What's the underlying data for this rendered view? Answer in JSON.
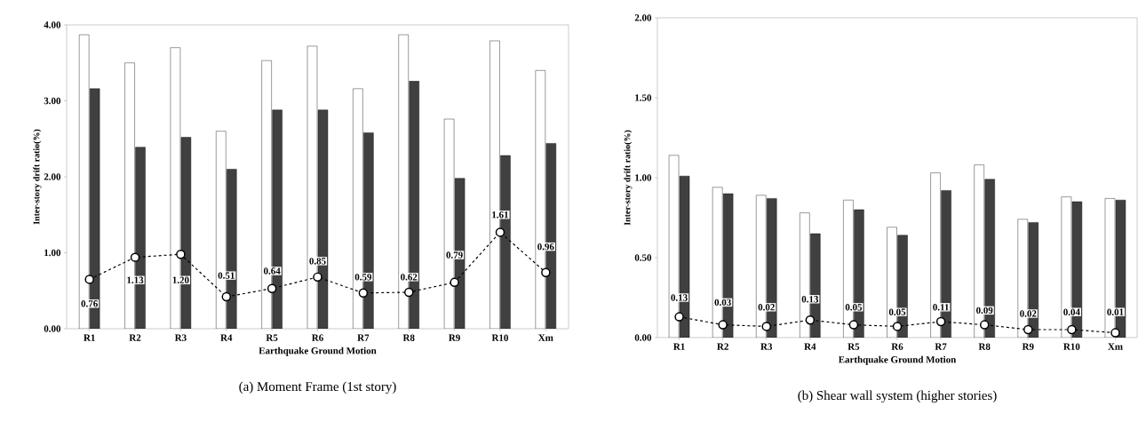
{
  "chart_data": [
    {
      "type": "bar",
      "title": "(a) Moment Frame (1st story)",
      "xlabel": "Earthquake Ground Motion",
      "ylabel": "Inter-story drift ratio(%)",
      "categories": [
        "R1",
        "R2",
        "R3",
        "R4",
        "R5",
        "R6",
        "R7",
        "R8",
        "R9",
        "R10",
        "Xm"
      ],
      "ylim": [
        0,
        4
      ],
      "yticks": [
        {
          "value": 0,
          "label": "0.00"
        },
        {
          "value": 1,
          "label": "1.00"
        },
        {
          "value": 2,
          "label": "2.00"
        },
        {
          "value": 3,
          "label": "3.00"
        },
        {
          "value": 4,
          "label": "4.00"
        }
      ],
      "series": [
        {
          "color": "#ffffff",
          "values": [
            3.87,
            3.5,
            3.7,
            2.6,
            3.53,
            3.72,
            3.16,
            3.87,
            2.76,
            3.79,
            3.4
          ]
        },
        {
          "color": "#404040",
          "values": [
            3.16,
            2.39,
            2.52,
            2.1,
            2.88,
            2.88,
            2.58,
            3.26,
            1.98,
            2.28,
            2.44
          ]
        },
        {
          "type": "line",
          "color": "#000000",
          "line_style": "dashed",
          "marker": "circle",
          "values": [
            0.65,
            0.94,
            0.98,
            0.42,
            0.53,
            0.68,
            0.47,
            0.48,
            0.61,
            1.27,
            0.74
          ]
        }
      ],
      "annotations": [
        {
          "text": "0.76",
          "x": "R1",
          "y": 0.33
        },
        {
          "text": "1.13",
          "x": "R2",
          "y": 0.64
        },
        {
          "text": "1.20",
          "x": "R3",
          "y": 0.64
        },
        {
          "text": "0.51",
          "x": "R4",
          "y": 0.7
        },
        {
          "text": "0.64",
          "x": "R5",
          "y": 0.76
        },
        {
          "text": "0.85",
          "x": "R6",
          "y": 0.89
        },
        {
          "text": "0.59",
          "x": "R7",
          "y": 0.68
        },
        {
          "text": "0.62",
          "x": "R8",
          "y": 0.68
        },
        {
          "text": "0.79",
          "x": "R9",
          "y": 0.97
        },
        {
          "text": "1.61",
          "x": "R10",
          "y": 1.5
        },
        {
          "text": "0.96",
          "x": "Xm",
          "y": 1.08
        }
      ]
    },
    {
      "type": "bar",
      "title": "(b) Shear wall system (higher stories)",
      "xlabel": "Earthquake Ground Motion",
      "ylabel": "Inter-story drift ratio(%)",
      "categories": [
        "R1",
        "R2",
        "R3",
        "R4",
        "R5",
        "R6",
        "R7",
        "R8",
        "R9",
        "R10",
        "Xm"
      ],
      "ylim": [
        0,
        2
      ],
      "yticks": [
        {
          "value": 0,
          "label": "0.00"
        },
        {
          "value": 0.5,
          "label": "0.50"
        },
        {
          "value": 1,
          "label": "1.00"
        },
        {
          "value": 1.5,
          "label": "1.50"
        },
        {
          "value": 2,
          "label": "2.00"
        }
      ],
      "series": [
        {
          "color": "#ffffff",
          "values": [
            1.14,
            0.94,
            0.89,
            0.78,
            0.86,
            0.69,
            1.03,
            1.08,
            0.74,
            0.88,
            0.87
          ]
        },
        {
          "color": "#404040",
          "values": [
            1.01,
            0.9,
            0.87,
            0.65,
            0.8,
            0.64,
            0.92,
            0.99,
            0.72,
            0.85,
            0.86
          ]
        },
        {
          "type": "line",
          "color": "#000000",
          "line_style": "dashed",
          "marker": "circle",
          "values": [
            0.13,
            0.08,
            0.07,
            0.11,
            0.08,
            0.07,
            0.1,
            0.08,
            0.05,
            0.05,
            0.03
          ]
        }
      ],
      "annotations": [
        {
          "text": "0.13",
          "x": "R1",
          "y": 0.25
        },
        {
          "text": "0.03",
          "x": "R2",
          "y": 0.22
        },
        {
          "text": "0.02",
          "x": "R3",
          "y": 0.19
        },
        {
          "text": "0.13",
          "x": "R4",
          "y": 0.24
        },
        {
          "text": "0.05",
          "x": "R5",
          "y": 0.19
        },
        {
          "text": "0.05",
          "x": "R6",
          "y": 0.16
        },
        {
          "text": "0.11",
          "x": "R7",
          "y": 0.19
        },
        {
          "text": "0.09",
          "x": "R8",
          "y": 0.17
        },
        {
          "text": "0.02",
          "x": "R9",
          "y": 0.15
        },
        {
          "text": "0.04",
          "x": "R10",
          "y": 0.16
        },
        {
          "text": "0.01",
          "x": "Xm",
          "y": 0.16
        }
      ]
    }
  ]
}
